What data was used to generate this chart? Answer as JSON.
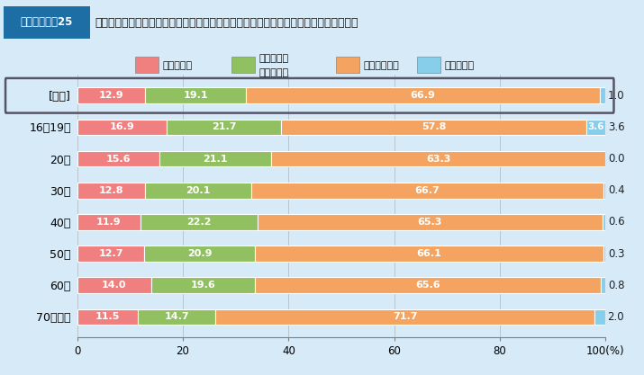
{
  "title": "学校で教わる表記の仕方と，　官公庁などが示す文書や法令などの表記の仕方の異なり",
  "title_label": "図表２－９－25",
  "categories": [
    "》全体《",
    "16～19歳",
    "20代",
    "30代",
    "40代",
    "50代",
    "60代",
    "70歳以上"
  ],
  "cat_display": [
    "[全体]",
    "16～19歳",
    "20代",
    "30代",
    "40代",
    "50代",
    "60代",
    "70歳以上"
  ],
  "data": [
    [
      12.9,
      19.1,
      66.9,
      1.0
    ],
    [
      16.9,
      21.7,
      57.8,
      3.6
    ],
    [
      15.6,
      21.1,
      63.3,
      0.0
    ],
    [
      12.8,
      20.1,
      66.7,
      0.4
    ],
    [
      11.9,
      22.2,
      65.3,
      0.6
    ],
    [
      12.7,
      20.9,
      66.1,
      0.3
    ],
    [
      14.0,
      19.6,
      65.6,
      0.8
    ],
    [
      11.5,
      14.7,
      71.7,
      2.0
    ]
  ],
  "colors": [
    "#F08080",
    "#90C060",
    "#F4A460",
    "#87CEEB"
  ],
  "legend_labels": [
    "知っていた",
    "なんとなく\n知っていた",
    "知らなかった",
    "分からない"
  ],
  "bg_color": "#D6EAF8",
  "title_bg": "#1E6EA6",
  "title_fg": "#FFFFFF",
  "header_bg": "#E8F4F8",
  "xticks": [
    0,
    20,
    40,
    60,
    80,
    100
  ],
  "bar_height": 0.5
}
